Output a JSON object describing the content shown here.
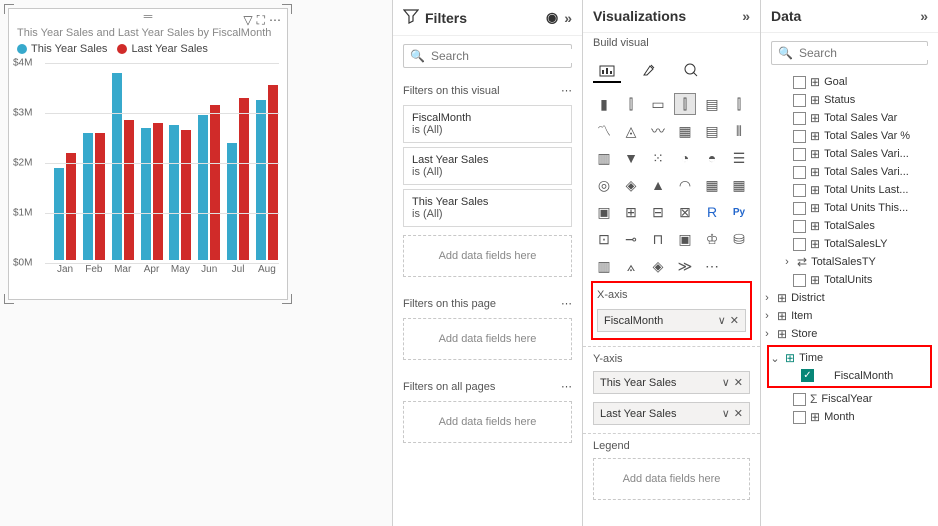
{
  "chart": {
    "title": "This Year Sales and Last Year Sales by FiscalMonth",
    "series": [
      {
        "name": "This Year Sales",
        "color": "#37a9cc"
      },
      {
        "name": "Last Year Sales",
        "color": "#d02b29"
      }
    ],
    "y_max": 4,
    "y_ticks": [
      "$0M",
      "$1M",
      "$2M",
      "$3M",
      "$4M"
    ],
    "categories": [
      "Jan",
      "Feb",
      "Mar",
      "Apr",
      "May",
      "Jun",
      "Jul",
      "Aug"
    ],
    "this_year": [
      1.85,
      2.55,
      3.75,
      2.65,
      2.7,
      2.9,
      2.35,
      3.2
    ],
    "last_year": [
      2.15,
      2.55,
      2.8,
      2.75,
      2.6,
      3.1,
      3.25,
      3.5
    ],
    "bg": "#ffffff",
    "grid": "#e0e0e0"
  },
  "filters": {
    "header": "Filters",
    "search_placeholder": "Search",
    "sections": {
      "visual_title": "Filters on this visual",
      "visual_items": [
        {
          "name": "FiscalMonth",
          "value": "is (All)"
        },
        {
          "name": "Last Year Sales",
          "value": "is (All)"
        },
        {
          "name": "This Year Sales",
          "value": "is (All)"
        }
      ],
      "page_title": "Filters on this page",
      "all_title": "Filters on all pages",
      "add_label": "Add data fields here"
    }
  },
  "viz": {
    "header": "Visualizations",
    "sub": "Build visual",
    "wells": {
      "xaxis_title": "X-axis",
      "xaxis_item": "FiscalMonth",
      "yaxis_title": "Y-axis",
      "yaxis_items": [
        "This Year Sales",
        "Last Year Sales"
      ],
      "legend_title": "Legend",
      "legend_add": "Add data fields here"
    }
  },
  "data": {
    "header": "Data",
    "search_placeholder": "Search",
    "flat_fields": [
      "Goal",
      "Status",
      "Total Sales Var",
      "Total Sales Var %",
      "Total Sales Vari...",
      "Total Sales Vari...",
      "Total Units Last...",
      "Total Units This...",
      "TotalSales",
      "TotalSalesLY"
    ],
    "totalsalesty": "TotalSalesTY",
    "totalunits": "TotalUnits",
    "tables": [
      "District",
      "Item",
      "Store"
    ],
    "time_label": "Time",
    "time_fields": {
      "fiscalmonth": "FiscalMonth",
      "fiscalyear": "FiscalYear",
      "month": "Month"
    }
  }
}
